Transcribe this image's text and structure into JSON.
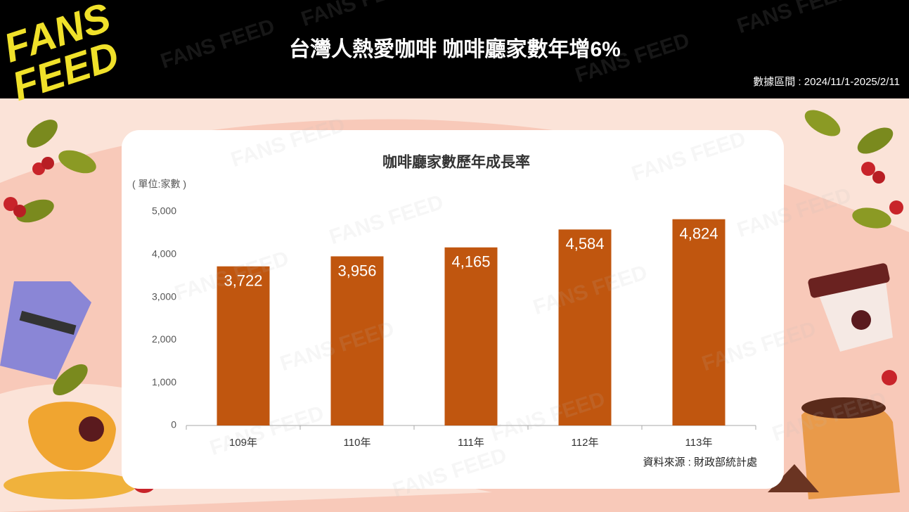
{
  "header": {
    "brand": [
      "FANS",
      "FEED"
    ],
    "title": "台灣人熱愛咖啡 咖啡廳家數年增6%",
    "date_range": "數據區間 : 2024/11/1-2025/2/11"
  },
  "watermark": "FANS FEED",
  "chart_data": {
    "type": "bar",
    "title": "咖啡廳家數歷年成長率",
    "y_label": "( 單位:家數 )",
    "categories": [
      "109年",
      "110年",
      "111年",
      "112年",
      "113年"
    ],
    "values": [
      3722,
      3956,
      4165,
      4584,
      4824
    ],
    "value_labels": [
      "3,722",
      "3,956",
      "4,165",
      "4,584",
      "4,824"
    ],
    "color": "#c0560f",
    "ylim": [
      0,
      5000
    ],
    "yticks": [
      0,
      {
        "value": 1000,
        "label": "1,000"
      },
      {
        "value": 2000,
        "label": "2,000"
      },
      {
        "value": 3000,
        "label": "3,000"
      },
      {
        "value": 4000,
        "label": "4,000"
      },
      {
        "value": 5000,
        "label": "5,000"
      }
    ],
    "grid": false,
    "source": "資料來源 : 財政部統計處"
  }
}
